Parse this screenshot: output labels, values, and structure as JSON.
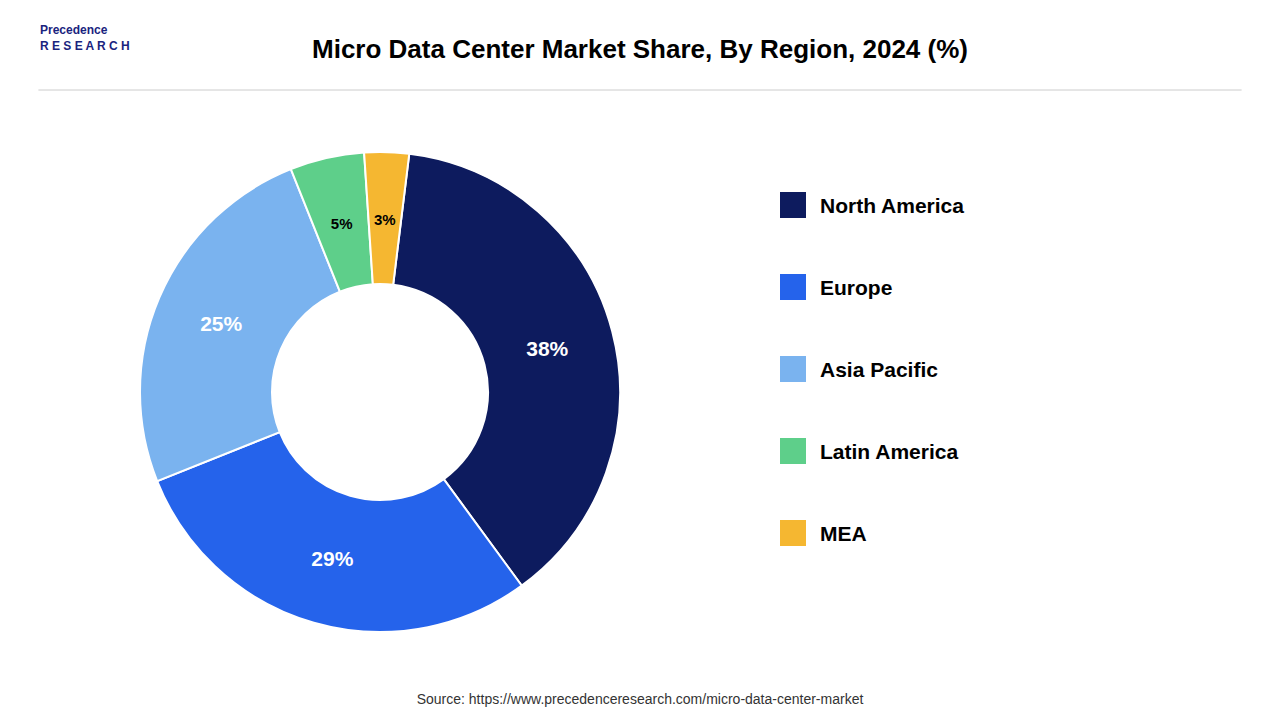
{
  "chart_data": {
    "type": "donut",
    "title": "Micro Data Center Market Share, By Region, 2024 (%)",
    "categories": [
      "North America",
      "Europe",
      "Asia Pacific",
      "Latin America",
      "MEA"
    ],
    "values": [
      38,
      29,
      25,
      5,
      3
    ],
    "value_labels": [
      "38%",
      "29%",
      "25%",
      "5%",
      "3%"
    ],
    "colors": [
      "#0d1b5e",
      "#2563eb",
      "#7ab3ef",
      "#5ecf8a",
      "#f5b731"
    ],
    "data_labels": true,
    "legend": "right",
    "annotations": [
      "Precedence",
      "R E S E A R C H",
      "Source: https://www.precedenceresearch.com/micro-data-center-market"
    ]
  }
}
